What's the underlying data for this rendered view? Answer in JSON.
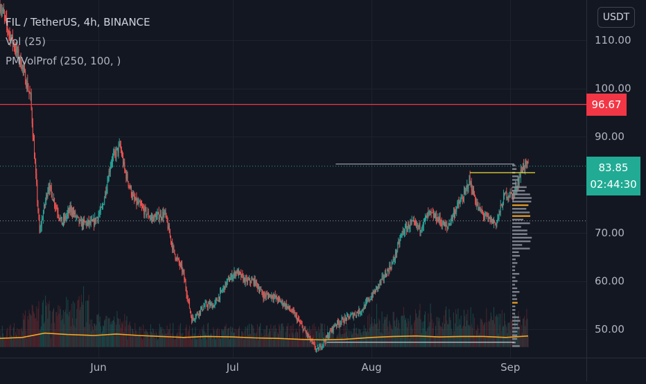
{
  "legend": {
    "symbol": "FIL / TetherUS, 4h, BINANCE",
    "volume": "Vol (25)",
    "profile": "PMVolProf (250, 100, )"
  },
  "currency": "USDT",
  "price_tags": {
    "level": "96.67",
    "last": "83.85",
    "countdown": "02:44:30"
  },
  "colors": {
    "background": "#131722",
    "up": "#26a69a",
    "down": "#ef5350",
    "volume_ma": "#f5a623",
    "level_line": "#f23645",
    "last_price": "#22ab94",
    "profile_high": "#f0e136",
    "profile_poc": "#f5a623"
  },
  "chart_data": {
    "type": "candlestick",
    "symbol": "FIL / TetherUS",
    "interval": "4h",
    "exchange": "BINANCE",
    "y_ticks": [
      50,
      60,
      70,
      80,
      90,
      100,
      110
    ],
    "y_tick_labels": [
      "50.00",
      "60.00",
      "70.00",
      "",
      "90.00",
      "100.00",
      "110.00"
    ],
    "x_ticks": [
      "Jun",
      "Jul",
      "Aug",
      "Sep"
    ],
    "x_range": [
      "2021-05-10",
      "2021-09-18"
    ],
    "ylim": [
      45.5,
      117
    ],
    "horizontal_level": 96.67,
    "last_price": 83.85,
    "dotted_levels": [
      83.85,
      72.5
    ],
    "profile_lines": [
      84.3,
      82.5,
      47.3
    ],
    "price_path": [
      [
        "2021-05-10",
        118
      ],
      [
        "2021-05-12",
        112
      ],
      [
        "2021-05-15",
        105
      ],
      [
        "2021-05-17",
        98
      ],
      [
        "2021-05-19",
        70
      ],
      [
        "2021-05-21",
        80
      ],
      [
        "2021-05-24",
        72
      ],
      [
        "2021-05-26",
        75
      ],
      [
        "2021-05-28",
        72
      ],
      [
        "2021-05-31",
        72
      ],
      [
        "2021-06-02",
        75
      ],
      [
        "2021-06-04",
        85
      ],
      [
        "2021-06-06",
        88
      ],
      [
        "2021-06-07",
        83
      ],
      [
        "2021-06-09",
        77
      ],
      [
        "2021-06-11",
        75
      ],
      [
        "2021-06-13",
        73
      ],
      [
        "2021-06-16",
        74
      ],
      [
        "2021-06-18",
        66
      ],
      [
        "2021-06-20",
        62
      ],
      [
        "2021-06-22",
        52
      ],
      [
        "2021-06-25",
        55
      ],
      [
        "2021-06-27",
        55
      ],
      [
        "2021-06-30",
        60
      ],
      [
        "2021-07-02",
        62
      ],
      [
        "2021-07-04",
        60
      ],
      [
        "2021-07-06",
        60
      ],
      [
        "2021-07-08",
        57
      ],
      [
        "2021-07-10",
        57
      ],
      [
        "2021-07-13",
        55
      ],
      [
        "2021-07-15",
        53
      ],
      [
        "2021-07-17",
        50
      ],
      [
        "2021-07-20",
        45.5
      ],
      [
        "2021-07-22",
        48
      ],
      [
        "2021-07-24",
        51
      ],
      [
        "2021-07-26",
        52
      ],
      [
        "2021-07-28",
        53
      ],
      [
        "2021-07-30",
        54
      ],
      [
        "2021-08-02",
        58
      ],
      [
        "2021-08-04",
        61
      ],
      [
        "2021-08-06",
        64
      ],
      [
        "2021-08-08",
        70
      ],
      [
        "2021-08-10",
        72
      ],
      [
        "2021-08-12",
        71
      ],
      [
        "2021-08-14",
        74
      ],
      [
        "2021-08-16",
        73
      ],
      [
        "2021-08-18",
        71
      ],
      [
        "2021-08-20",
        75
      ],
      [
        "2021-08-22",
        78
      ],
      [
        "2021-08-23",
        81
      ],
      [
        "2021-08-25",
        75
      ],
      [
        "2021-08-27",
        73
      ],
      [
        "2021-08-29",
        72
      ],
      [
        "2021-08-31",
        78
      ],
      [
        "2021-09-02",
        78
      ],
      [
        "2021-09-04",
        84
      ],
      [
        "2021-09-05",
        83.85
      ]
    ],
    "volume_ma_path": [
      [
        "2021-05-10",
        48.1
      ],
      [
        "2021-05-15",
        48.3
      ],
      [
        "2021-05-20",
        49.2
      ],
      [
        "2021-05-25",
        48.9
      ],
      [
        "2021-05-31",
        48.7
      ],
      [
        "2021-06-05",
        49.0
      ],
      [
        "2021-06-10",
        48.7
      ],
      [
        "2021-06-15",
        48.5
      ],
      [
        "2021-06-20",
        48.3
      ],
      [
        "2021-06-25",
        48.5
      ],
      [
        "2021-07-01",
        48.4
      ],
      [
        "2021-07-06",
        48.2
      ],
      [
        "2021-07-11",
        48.1
      ],
      [
        "2021-07-16",
        47.9
      ],
      [
        "2021-07-21",
        47.8
      ],
      [
        "2021-07-26",
        47.9
      ],
      [
        "2021-08-01",
        48.3
      ],
      [
        "2021-08-06",
        48.5
      ],
      [
        "2021-08-11",
        48.6
      ],
      [
        "2021-08-16",
        48.4
      ],
      [
        "2021-08-21",
        48.5
      ],
      [
        "2021-08-26",
        48.5
      ],
      [
        "2021-08-31",
        48.3
      ],
      [
        "2021-09-05",
        48.6
      ]
    ]
  }
}
